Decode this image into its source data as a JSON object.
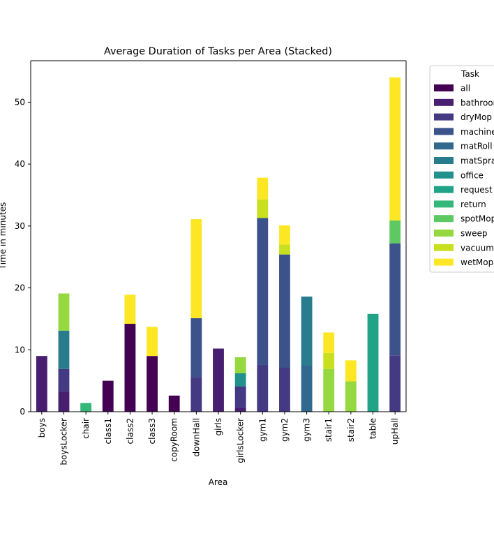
{
  "chart_data": {
    "type": "bar",
    "stacked": true,
    "title": "Average Duration of Tasks per Area (Stacked)",
    "xlabel": "Area",
    "ylabel": "Time in minutes",
    "ylim": [
      0,
      56.7
    ],
    "yticks": [
      0,
      10,
      20,
      30,
      40,
      50
    ],
    "grid": false,
    "legend_position": "outside-right",
    "legend_title": "Task",
    "categories": [
      "boys",
      "boysLocker",
      "chair",
      "class1",
      "class2",
      "class3",
      "copyRoom",
      "downHall",
      "girls",
      "girlsLocker",
      "gym1",
      "gym2",
      "gym3",
      "stair1",
      "stair2",
      "table",
      "upHall"
    ],
    "series": [
      {
        "name": "all",
        "color": "#440154",
        "values": [
          0,
          0,
          0,
          5.0,
          14.2,
          9.0,
          2.6,
          0,
          0,
          0,
          0,
          0,
          0,
          0,
          0,
          0,
          0
        ]
      },
      {
        "name": "bathroom",
        "color": "#481e70",
        "values": [
          9.0,
          3.3,
          0,
          0,
          0,
          0,
          0,
          0,
          10.2,
          0.7,
          0,
          0,
          0,
          0,
          0,
          0,
          0
        ]
      },
      {
        "name": "dryMop",
        "color": "#443983",
        "values": [
          0,
          3.6,
          0,
          0,
          0,
          0,
          0,
          5.6,
          0,
          3.4,
          7.6,
          7.1,
          0,
          0,
          0,
          0,
          9.1
        ]
      },
      {
        "name": "machine",
        "color": "#3b528b",
        "values": [
          0,
          0,
          0,
          0,
          0,
          0,
          0,
          9.5,
          0,
          0,
          23.7,
          18.3,
          0,
          0,
          0,
          0,
          18.1
        ]
      },
      {
        "name": "matRoll",
        "color": "#31688e",
        "values": [
          0,
          0,
          0,
          0,
          0,
          0,
          0,
          0,
          0,
          0,
          0,
          0,
          7.5,
          0,
          0,
          0,
          0
        ]
      },
      {
        "name": "matSpray",
        "color": "#287c8e",
        "values": [
          0,
          6.2,
          0,
          0,
          0,
          0,
          0,
          0,
          0,
          0,
          0,
          0,
          11.1,
          0,
          0,
          0,
          0
        ]
      },
      {
        "name": "office",
        "color": "#21918c",
        "values": [
          0,
          0,
          0,
          0,
          0,
          0,
          0,
          0,
          0,
          2.1,
          0,
          0,
          0,
          0,
          0,
          0,
          0
        ]
      },
      {
        "name": "request",
        "color": "#20a386",
        "values": [
          0,
          0,
          0,
          0,
          0,
          0,
          0,
          0,
          0,
          0,
          0,
          0,
          0,
          0,
          0,
          15.8,
          0
        ]
      },
      {
        "name": "return",
        "color": "#35b779",
        "values": [
          0,
          0,
          1.4,
          0,
          0,
          0,
          0,
          0,
          0,
          0,
          0,
          0,
          0,
          0,
          0,
          0,
          0
        ]
      },
      {
        "name": "spotMop",
        "color": "#5ec962",
        "values": [
          0,
          0,
          0,
          0,
          0,
          0,
          0,
          0,
          0,
          0,
          0,
          0,
          0,
          0,
          0,
          0,
          3.7
        ]
      },
      {
        "name": "sweep",
        "color": "#95d840",
        "values": [
          0,
          6.0,
          0,
          0,
          0,
          0,
          0,
          0,
          0,
          2.6,
          0,
          0,
          0,
          6.9,
          4.9,
          0,
          0
        ]
      },
      {
        "name": "vacuum",
        "color": "#c8e020",
        "values": [
          0,
          0,
          0,
          0,
          0,
          0,
          0,
          0,
          0,
          0,
          3.0,
          1.6,
          0,
          2.6,
          0,
          0,
          0
        ]
      },
      {
        "name": "wetMop",
        "color": "#fde725",
        "values": [
          0,
          0,
          0,
          0,
          4.7,
          4.7,
          0,
          16.0,
          0,
          0,
          3.5,
          3.1,
          0,
          3.3,
          3.4,
          0,
          23.1
        ]
      }
    ]
  }
}
